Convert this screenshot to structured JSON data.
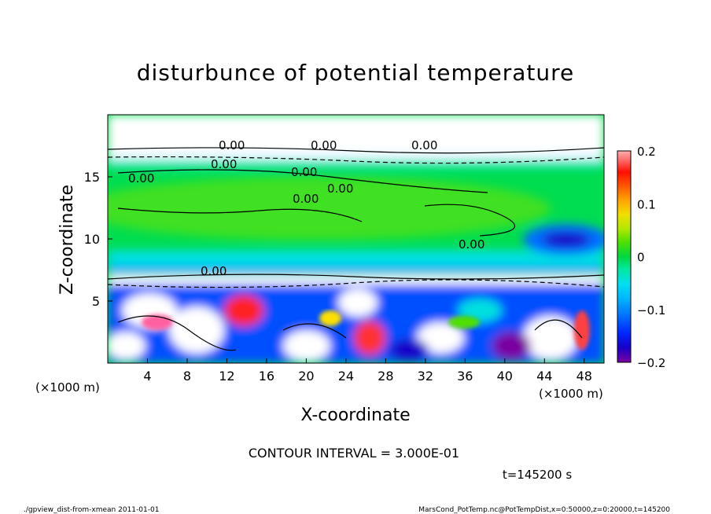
{
  "chart_data": {
    "type": "heatmap",
    "title": "disturbunce of potential temperature",
    "xlabel": "X-coordinate",
    "ylabel": "Z-coordinate",
    "x_unit_left": "(×1000 m)",
    "x_unit_right": "(×1000 m)",
    "xlim": [
      0,
      50
    ],
    "ylim": [
      0,
      20
    ],
    "x_ticks": [
      "4",
      "8",
      "12",
      "16",
      "20",
      "24",
      "28",
      "32",
      "36",
      "40",
      "44",
      "48"
    ],
    "y_ticks": [
      "5",
      "10",
      "15"
    ],
    "colorbar": {
      "ticks": [
        "0.2",
        "0.1",
        "0",
        "−0.1",
        "−0.2"
      ],
      "min": -0.2,
      "max": 0.2,
      "colors": [
        "#7a00a0",
        "#1800c8",
        "#0028ff",
        "#0070ff",
        "#00b4ff",
        "#00e0f0",
        "#00e8a0",
        "#00d840",
        "#50e000",
        "#b0e800",
        "#f0e000",
        "#ffa000",
        "#ff5000",
        "#ff1000",
        "#ff6060",
        "#ffb0b0"
      ]
    },
    "contour_labels": [
      "0.00",
      "0.00",
      "0.00",
      "0.00",
      "0.00",
      "0.00",
      "0.00",
      "0.00",
      "0.00",
      "0.00"
    ],
    "contour_interval_text": "CONTOUR INTERVAL = 3.000E-01",
    "time_label": "t=145200 s"
  },
  "footer": {
    "left": "./gpview_dist-from-xmean   2011-01-01",
    "right": "MarsCond_PotTemp.nc@PotTempDist,x=0:50000,z=0:20000,t=145200"
  }
}
